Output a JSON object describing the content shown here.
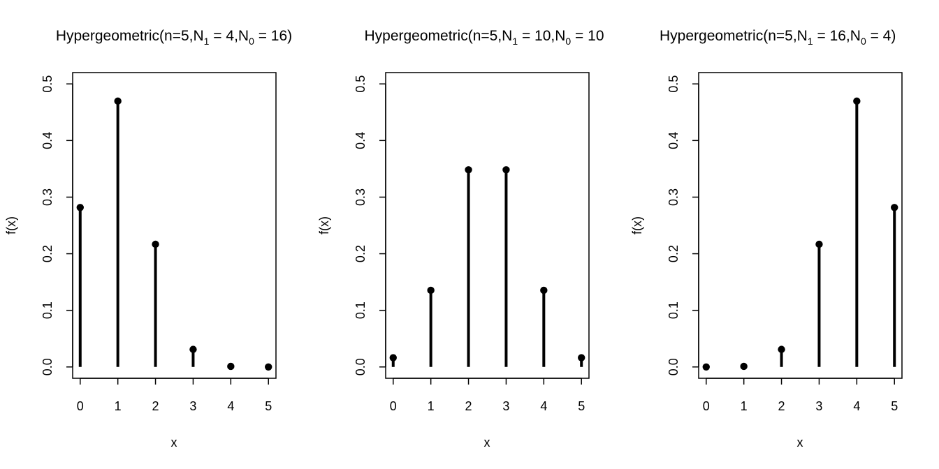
{
  "chart_data": [
    {
      "type": "scatter",
      "title": {
        "prefix": "Hypergeometric(n=5,N",
        "n1_sub": "1",
        "n1_eq": " = 4,N",
        "n0_sub": "0",
        "n0_eq": " = 16)"
      },
      "xlabel": "x",
      "ylabel": "f(x)",
      "x": [
        0,
        1,
        2,
        3,
        4,
        5
      ],
      "values": [
        0.2817,
        0.4696,
        0.2167,
        0.031,
        0.001,
        0.0
      ],
      "xlim": [
        -0.2,
        5.2
      ],
      "ylim": [
        -0.02,
        0.52
      ],
      "xticks": [
        "0",
        "1",
        "2",
        "3",
        "4",
        "5"
      ],
      "yticks": [
        "0.0",
        "0.1",
        "0.2",
        "0.3",
        "0.4",
        "0.5"
      ],
      "grid": false
    },
    {
      "type": "scatter",
      "title": {
        "prefix": "Hypergeometric(n=5,N",
        "n1_sub": "1",
        "n1_eq": " = 10,N",
        "n0_sub": "0",
        "n0_eq": " = 10"
      },
      "xlabel": "x",
      "ylabel": "f(x)",
      "x": [
        0,
        1,
        2,
        3,
        4,
        5
      ],
      "values": [
        0.0163,
        0.1354,
        0.3483,
        0.3483,
        0.1354,
        0.0163
      ],
      "xlim": [
        -0.2,
        5.2
      ],
      "ylim": [
        -0.02,
        0.52
      ],
      "xticks": [
        "0",
        "1",
        "2",
        "3",
        "4",
        "5"
      ],
      "yticks": [
        "0.0",
        "0.1",
        "0.2",
        "0.3",
        "0.4",
        "0.5"
      ],
      "grid": false
    },
    {
      "type": "scatter",
      "title": {
        "prefix": "Hypergeometric(n=5,N",
        "n1_sub": "1",
        "n1_eq": " = 16,N",
        "n0_sub": "0",
        "n0_eq": " = 4)"
      },
      "xlabel": "x",
      "ylabel": "f(x)",
      "x": [
        0,
        1,
        2,
        3,
        4,
        5
      ],
      "values": [
        0.0,
        0.001,
        0.031,
        0.2167,
        0.4696,
        0.2817
      ],
      "xlim": [
        -0.2,
        5.2
      ],
      "ylim": [
        -0.02,
        0.52
      ],
      "xticks": [
        "0",
        "1",
        "2",
        "3",
        "4",
        "5"
      ],
      "yticks": [
        "0.0",
        "0.1",
        "0.2",
        "0.3",
        "0.4",
        "0.5"
      ],
      "grid": false
    }
  ]
}
